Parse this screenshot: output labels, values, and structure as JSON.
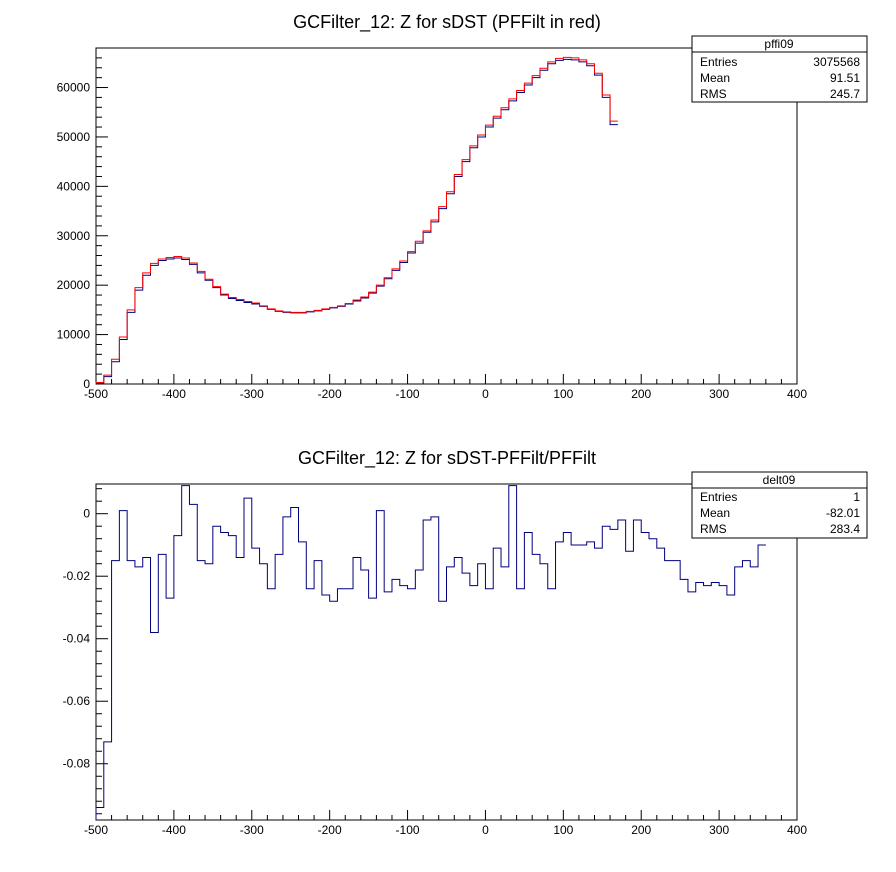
{
  "chart_data": [
    {
      "type": "histogram",
      "title": "GCFilter_12: Z for sDST (PFFilt in red)",
      "xlabel": "",
      "ylabel": "",
      "xlim": [
        -500,
        400
      ],
      "ylim": [
        0,
        68000
      ],
      "bin_width": 10,
      "x_ticks": [
        -500,
        -400,
        -300,
        -200,
        -100,
        0,
        100,
        200,
        300,
        400
      ],
      "y_ticks": [
        0,
        10000,
        20000,
        30000,
        40000,
        50000,
        60000
      ],
      "x_tick_labels": [
        "-500",
        "-400",
        "-300",
        "-200",
        "-100",
        "0",
        "100",
        "200",
        "300",
        "400"
      ],
      "y_tick_labels": [
        "0",
        "10000",
        "20000",
        "30000",
        "40000",
        "50000",
        "60000"
      ],
      "series": [
        {
          "color": "#00007f",
          "values": [
            200,
            1500,
            4500,
            9000,
            14500,
            19000,
            22000,
            24000,
            25000,
            25300,
            25500,
            25200,
            24200,
            22500,
            21000,
            19500,
            18000,
            17300,
            16900,
            16500,
            16200,
            15700,
            15100,
            14700,
            14500,
            14400,
            14400,
            14600,
            14800,
            15100,
            15400,
            15700,
            16200,
            16800,
            17400,
            18400,
            19800,
            21300,
            23000,
            24600,
            26500,
            28500,
            30700,
            32800,
            35500,
            38500,
            42000,
            45000,
            47800,
            50000,
            52000,
            53800,
            55500,
            57300,
            59000,
            60500,
            62000,
            63500,
            64800,
            65500,
            65700,
            65600,
            65200,
            64400,
            62500,
            58000,
            52500
          ]
        },
        {
          "color": "#ff0000",
          "values": [
            300,
            1800,
            5000,
            9500,
            15000,
            19500,
            22500,
            24400,
            25300,
            25600,
            25800,
            25500,
            24500,
            22800,
            21200,
            19700,
            18200,
            17500,
            17100,
            16700,
            16400,
            15800,
            15200,
            14800,
            14600,
            14500,
            14500,
            14700,
            14900,
            15200,
            15500,
            15800,
            16300,
            17000,
            17600,
            18600,
            20000,
            21500,
            23300,
            24900,
            26800,
            28900,
            31000,
            33200,
            35900,
            38900,
            42400,
            45400,
            48200,
            50400,
            52400,
            54200,
            55900,
            57700,
            59400,
            60900,
            62400,
            63900,
            65200,
            65900,
            66100,
            66000,
            65600,
            64800,
            62900,
            58500,
            53200
          ]
        }
      ],
      "stats": {
        "name": "pffi09",
        "rows": [
          {
            "label": "Entries",
            "value": "3075568"
          },
          {
            "label": "Mean",
            "value": "91.51"
          },
          {
            "label": "RMS",
            "value": "245.7"
          }
        ]
      }
    },
    {
      "type": "histogram",
      "title": "GCFilter_12: Z for sDST-PFFilt/PFFilt",
      "xlabel": "",
      "ylabel": "",
      "xlim": [
        -500,
        400
      ],
      "ylim": [
        -0.098,
        0.0095
      ],
      "bin_width": 10,
      "x_ticks": [
        -500,
        -400,
        -300,
        -200,
        -100,
        0,
        100,
        200,
        300,
        400
      ],
      "y_ticks": [
        -0.08,
        -0.06,
        -0.04,
        -0.02,
        0
      ],
      "x_tick_labels": [
        "-500",
        "-400",
        "-300",
        "-200",
        "-100",
        "0",
        "100",
        "200",
        "300",
        "400"
      ],
      "y_tick_labels": [
        "-0.08",
        "-0.06",
        "-0.04",
        "-0.02",
        "0"
      ],
      "series": [
        {
          "color": "#00007f",
          "values": [
            -0.094,
            -0.073,
            -0.015,
            0.001,
            -0.015,
            -0.017,
            -0.014,
            -0.038,
            -0.013,
            -0.027,
            -0.007,
            0.009,
            0.003,
            -0.015,
            -0.016,
            -0.004,
            -0.006,
            -0.007,
            -0.014,
            0.005,
            -0.011,
            -0.016,
            -0.024,
            -0.013,
            -0.001,
            0.002,
            -0.009,
            -0.024,
            -0.015,
            -0.026,
            -0.028,
            -0.024,
            -0.024,
            -0.014,
            -0.018,
            -0.027,
            0.001,
            -0.025,
            -0.021,
            -0.023,
            -0.024,
            -0.018,
            -0.002,
            -0.001,
            -0.028,
            -0.017,
            -0.014,
            -0.019,
            -0.023,
            -0.016,
            -0.024,
            -0.011,
            -0.017,
            0.009,
            -0.024,
            -0.006,
            -0.013,
            -0.016,
            -0.024,
            -0.009,
            -0.006,
            -0.01,
            -0.01,
            -0.009,
            -0.011,
            -0.004,
            -0.005,
            -0.002,
            -0.012,
            -0.002,
            -0.006,
            -0.008,
            -0.011,
            -0.015,
            -0.015,
            -0.021,
            -0.025,
            -0.022,
            -0.023,
            -0.022,
            -0.023,
            -0.026,
            -0.017,
            -0.015,
            -0.017,
            -0.01
          ]
        }
      ],
      "stats": {
        "name": "delt09",
        "rows": [
          {
            "label": "Entries",
            "value": "1"
          },
          {
            "label": "Mean",
            "value": "-82.01"
          },
          {
            "label": "RMS",
            "value": "283.4"
          }
        ]
      }
    }
  ]
}
